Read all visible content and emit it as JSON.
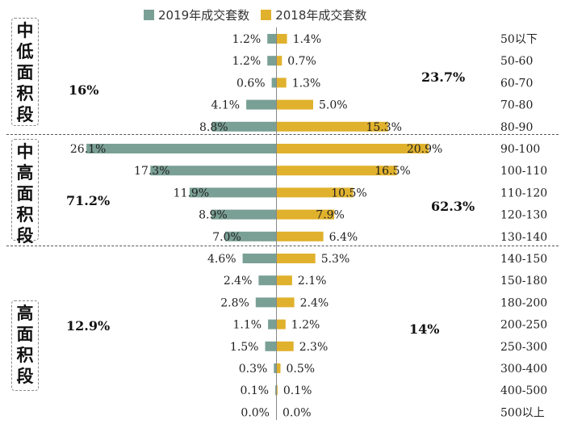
{
  "legend": [
    {
      "label": "2019年成交套数",
      "color": "#7aa095"
    },
    {
      "label": "2018年成交套数",
      "color": "#e0b12c"
    }
  ],
  "sections": [
    {
      "label": "中低面积段",
      "pct_2019": "16%",
      "pct_2018": "23.7%"
    },
    {
      "label": "中高面积段",
      "pct_2019": "71.2%",
      "pct_2018": "62.3%"
    },
    {
      "label": "高面积段",
      "pct_2019": "12.9%",
      "pct_2018": "14%"
    }
  ],
  "chart_data": {
    "type": "bar",
    "orientation": "horizontal-butterfly",
    "categories": [
      "50以下",
      "50-60",
      "60-70",
      "70-80",
      "80-90",
      "90-100",
      "100-110",
      "110-120",
      "120-130",
      "130-140",
      "140-150",
      "150-180",
      "180-200",
      "200-250",
      "250-300",
      "300-400",
      "400-500",
      "500以上"
    ],
    "series": [
      {
        "name": "2019年成交套数",
        "values": [
          1.2,
          1.2,
          0.6,
          4.1,
          8.8,
          26.1,
          17.3,
          11.9,
          8.9,
          7.0,
          4.6,
          2.4,
          2.8,
          1.1,
          1.5,
          0.3,
          0.1,
          0.0
        ],
        "labels": [
          "1.2%",
          "1.2%",
          "0.6%",
          "4.1%",
          "8.8%",
          "26.1%",
          "17.3%",
          "11.9%",
          "8.9%",
          "7.0%",
          "4.6%",
          "2.4%",
          "2.8%",
          "1.1%",
          "1.5%",
          "0.3%",
          "0.1%",
          "0.0%"
        ]
      },
      {
        "name": "2018年成交套数",
        "values": [
          1.4,
          0.7,
          1.3,
          5.0,
          15.3,
          20.9,
          16.5,
          10.5,
          7.9,
          6.4,
          5.3,
          2.1,
          2.4,
          1.2,
          2.3,
          0.5,
          0.1,
          0.0
        ],
        "labels": [
          "1.4%",
          "0.7%",
          "1.3%",
          "5.0%",
          "15.3%",
          "20.9%",
          "16.5%",
          "10.5%",
          "7.9%",
          "6.4%",
          "5.3%",
          "2.1%",
          "2.4%",
          "1.2%",
          "2.3%",
          "0.5%",
          "0.1%",
          "0.0%"
        ]
      }
    ],
    "colors": {
      "left": "#7aa095",
      "right": "#e0b12c"
    },
    "grid": false
  }
}
